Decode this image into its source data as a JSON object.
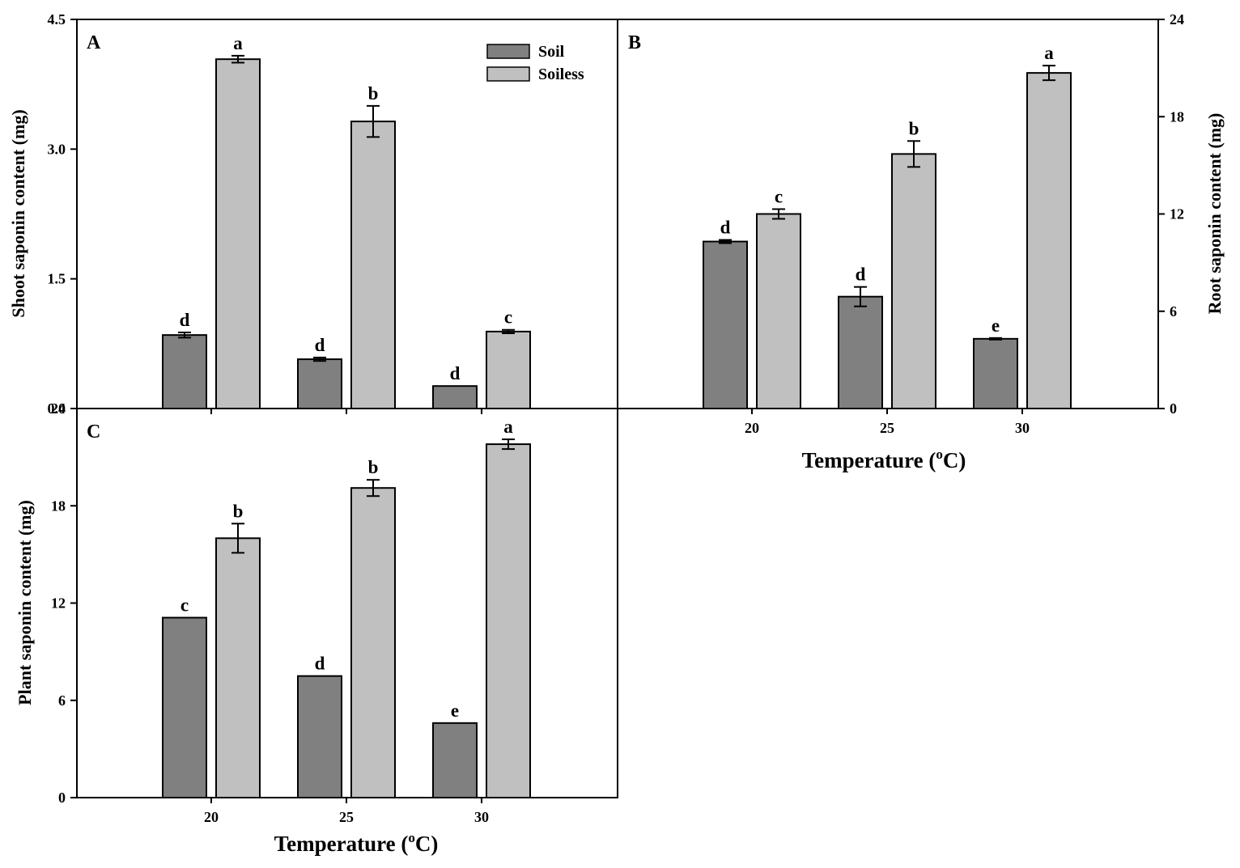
{
  "chart_data": [
    {
      "panel": "A",
      "type": "bar",
      "ylabel": "Shoot saponin content (mg)",
      "xlabel": "",
      "categories": [
        "20",
        "25",
        "30"
      ],
      "ylim": [
        0,
        4.5
      ],
      "yticks": [
        "0.0",
        "1.5",
        "3.0",
        "4.5"
      ],
      "show_x_tick_labels": false,
      "y_axis_side": "left",
      "legend": {
        "position": "top-right",
        "entries": [
          "Soil",
          "Soiless"
        ]
      },
      "series": [
        {
          "name": "Soil",
          "color": "#808080",
          "values": [
            0.85,
            0.57,
            0.26
          ],
          "errors": [
            0.03,
            0.02,
            0.0
          ],
          "letters": [
            "d",
            "d",
            "d"
          ]
        },
        {
          "name": "Soiless",
          "color": "#c0c0c0",
          "values": [
            4.04,
            3.32,
            0.89
          ],
          "errors": [
            0.04,
            0.18,
            0.02
          ],
          "letters": [
            "a",
            "b",
            "c"
          ]
        }
      ]
    },
    {
      "panel": "B",
      "type": "bar",
      "ylabel": "Root saponin content (mg)",
      "xlabel": "Temperature (°C)",
      "xlabel_parts": {
        "pre": "Temperature (",
        "sup": "o",
        "post": "C)"
      },
      "categories": [
        "20",
        "25",
        "30"
      ],
      "ylim": [
        0,
        24
      ],
      "yticks": [
        "0",
        "6",
        "12",
        "18",
        "24"
      ],
      "show_x_tick_labels": true,
      "y_axis_side": "right",
      "series": [
        {
          "name": "Soil",
          "color": "#808080",
          "values": [
            10.3,
            6.9,
            4.3
          ],
          "errors": [
            0.1,
            0.6,
            0.05
          ],
          "letters": [
            "d",
            "d",
            "e"
          ]
        },
        {
          "name": "Soiless",
          "color": "#c0c0c0",
          "values": [
            12.0,
            15.7,
            20.7
          ],
          "errors": [
            0.3,
            0.8,
            0.45
          ],
          "letters": [
            "c",
            "b",
            "a"
          ]
        }
      ]
    },
    {
      "panel": "C",
      "type": "bar",
      "ylabel": "Plant saponin content (mg)",
      "xlabel": "Temperature (°C)",
      "xlabel_parts": {
        "pre": "Temperature (",
        "sup": "o",
        "post": "C)"
      },
      "categories": [
        "20",
        "25",
        "30"
      ],
      "ylim": [
        0,
        24
      ],
      "yticks": [
        "0",
        "6",
        "12",
        "18",
        "24"
      ],
      "show_x_tick_labels": true,
      "y_axis_side": "left",
      "series": [
        {
          "name": "Soil",
          "color": "#808080",
          "values": [
            11.1,
            7.5,
            4.6
          ],
          "errors": [
            0.0,
            0.0,
            0.0
          ],
          "letters": [
            "c",
            "d",
            "e"
          ]
        },
        {
          "name": "Soiless",
          "color": "#c0c0c0",
          "values": [
            16.0,
            19.1,
            21.8
          ],
          "errors": [
            0.9,
            0.5,
            0.3
          ],
          "letters": [
            "b",
            "b",
            "a"
          ]
        }
      ]
    }
  ]
}
